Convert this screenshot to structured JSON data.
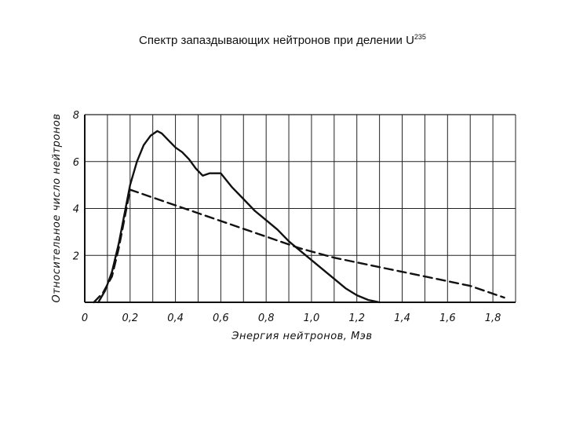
{
  "slide": {
    "title": "Спектр запаздывающих нейтронов при делении U",
    "title_superscript": "235"
  },
  "chart_data": {
    "type": "line",
    "title": "Спектр запаздывающих нейтронов при делении U²³⁵",
    "xlabel": "Энергия нейтронов, Мэв",
    "ylabel": "Относительное число нейтронов",
    "xlim": [
      0,
      1.9
    ],
    "ylim": [
      0,
      8
    ],
    "x_ticks": [
      "0",
      "0,2",
      "0,4",
      "0,6",
      "0,8",
      "1,0",
      "1,2",
      "1,4",
      "1,6",
      "1,8"
    ],
    "x_tick_values": [
      0,
      0.2,
      0.4,
      0.6,
      0.8,
      1.0,
      1.2,
      1.4,
      1.6,
      1.8
    ],
    "y_ticks": [
      "2",
      "4",
      "6",
      "8"
    ],
    "y_tick_values": [
      2,
      4,
      6,
      8
    ],
    "grid": true,
    "legend": "none",
    "series": [
      {
        "style": "solid",
        "color": "#111111",
        "x": [
          0.06,
          0.09,
          0.12,
          0.15,
          0.18,
          0.2,
          0.23,
          0.26,
          0.29,
          0.32,
          0.34,
          0.37,
          0.4,
          0.43,
          0.46,
          0.49,
          0.52,
          0.55,
          0.6,
          0.65,
          0.7,
          0.75,
          0.8,
          0.85,
          0.9,
          0.95,
          1.0,
          1.05,
          1.1,
          1.15,
          1.2,
          1.25,
          1.3
        ],
        "y": [
          0.0,
          0.5,
          1.3,
          2.5,
          4.0,
          5.0,
          6.0,
          6.7,
          7.1,
          7.3,
          7.2,
          6.9,
          6.6,
          6.4,
          6.1,
          5.7,
          5.4,
          5.5,
          5.5,
          4.9,
          4.4,
          3.9,
          3.5,
          3.1,
          2.6,
          2.2,
          1.8,
          1.4,
          1.0,
          0.6,
          0.3,
          0.1,
          0.0
        ]
      },
      {
        "style": "dashed",
        "color": "#111111",
        "x": [
          0.04,
          0.08,
          0.12,
          0.15,
          0.2,
          0.95,
          1.1,
          1.3,
          1.5,
          1.7,
          1.85
        ],
        "y": [
          0.0,
          0.4,
          1.1,
          2.3,
          4.8,
          2.3,
          1.9,
          1.5,
          1.1,
          0.7,
          0.2
        ]
      }
    ]
  }
}
